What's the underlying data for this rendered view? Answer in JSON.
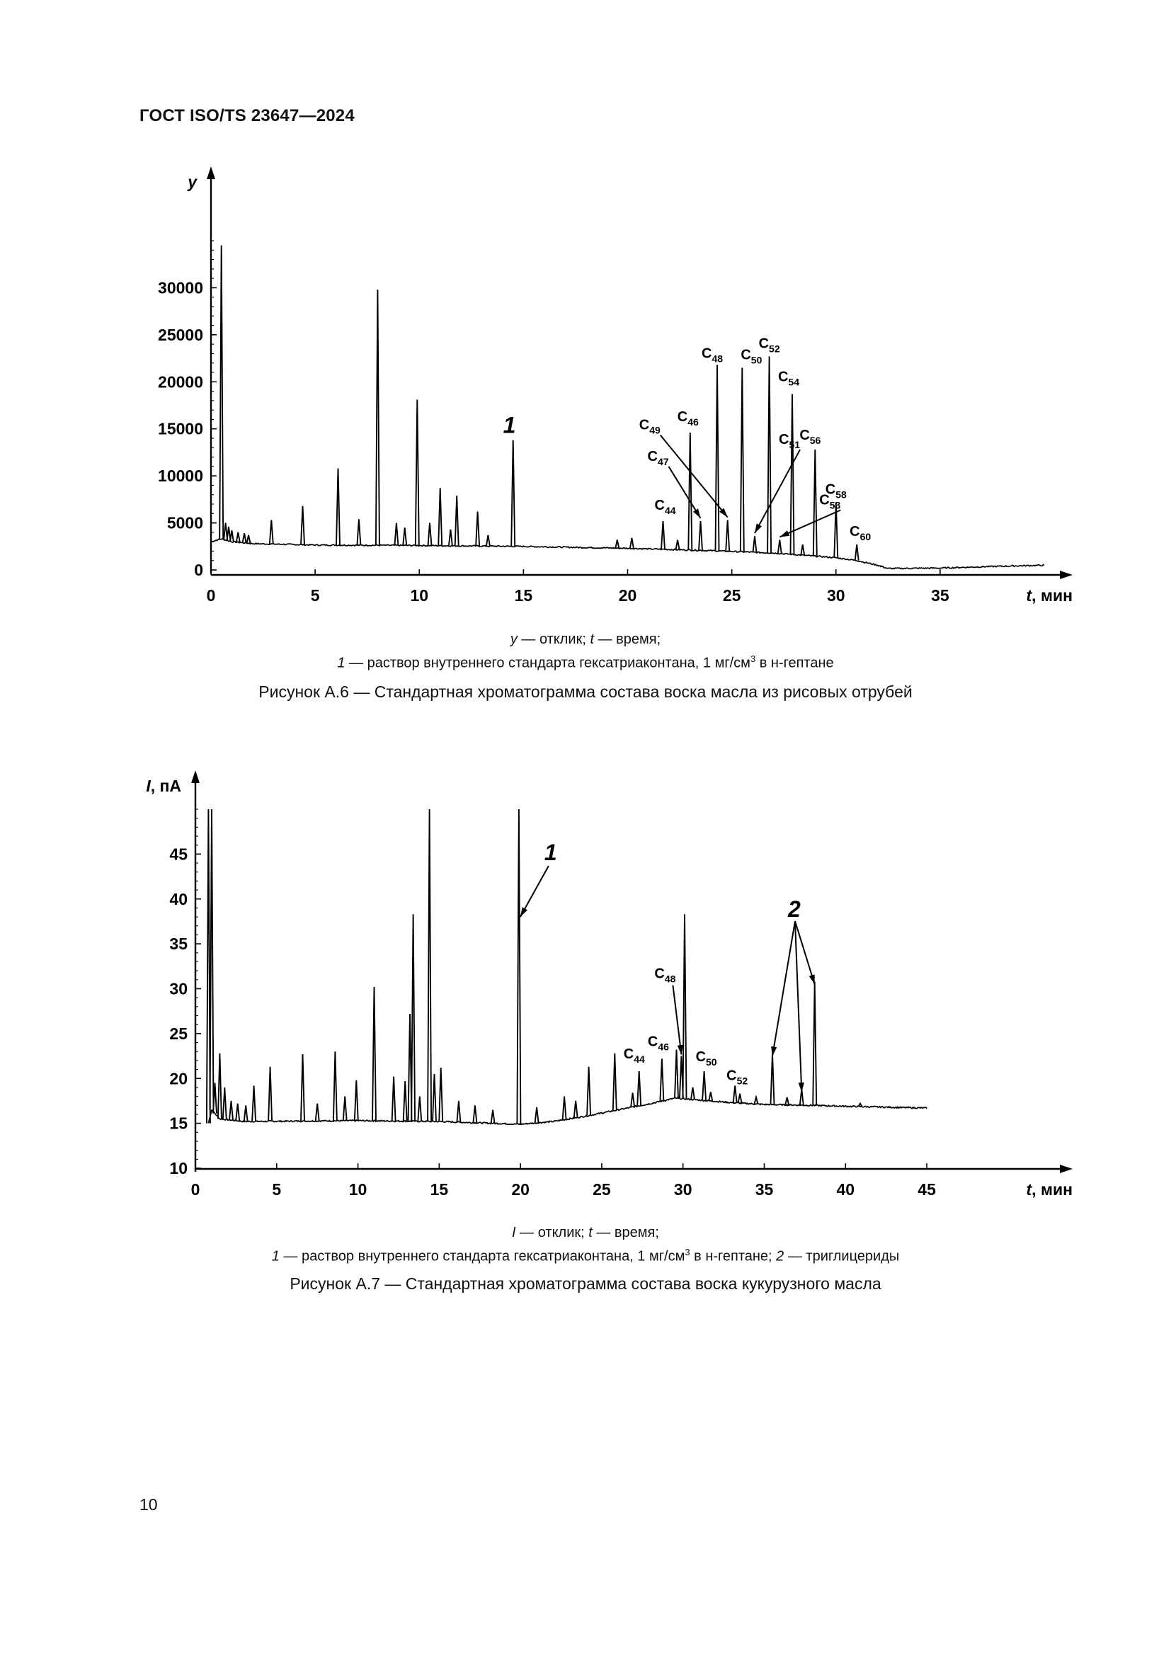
{
  "header": {
    "title": "ГОСТ ISO/TS 23647—2024"
  },
  "page_number": "10",
  "figures": [
    {
      "legend_line1": {
        "y_sym": "y",
        "y_text": " — отклик; ",
        "t_sym": "t",
        "t_text": " — время;"
      },
      "legend_line2": {
        "n1": "1",
        "text1": " — раствор внутреннего стандарта гексатриаконтана, 1 мг/см",
        "sup": "3",
        "text2": " в н-гептане"
      },
      "caption": "Рисунок А.6 — Стандартная хроматограмма состава воска масла из рисовых отрубей"
    },
    {
      "legend_line1": {
        "y_sym": "I",
        "y_text": " — отклик; ",
        "t_sym": "t",
        "t_text": " — время;"
      },
      "legend_line2": {
        "n1": "1",
        "text1": " — раствор внутреннего стандарта гексатриаконтана, 1 мг/см",
        "sup": "3",
        "text2": " в н-гептане; ",
        "n2": "2",
        "text3": " — триглицериды"
      },
      "caption": "Рисунок А.7 — Стандартная хроматограмма состава воска кукурузного масла"
    }
  ],
  "chart_data": [
    {
      "type": "line",
      "ylabel": "y",
      "xlabel": "t, мин",
      "xlim": [
        0,
        40
      ],
      "ylim": [
        0,
        35000
      ],
      "x_ticks": [
        0,
        5,
        10,
        15,
        20,
        25,
        30,
        35
      ],
      "y_ticks": [
        0,
        5000,
        10000,
        15000,
        20000,
        25000,
        30000
      ],
      "grid": false,
      "baseline": [
        [
          0,
          3000
        ],
        [
          0.5,
          3300
        ],
        [
          1,
          3000
        ],
        [
          2,
          2800
        ],
        [
          5,
          2650
        ],
        [
          10,
          2600
        ],
        [
          15,
          2500
        ],
        [
          20,
          2300
        ],
        [
          24,
          2050
        ],
        [
          27,
          1800
        ],
        [
          30,
          1300
        ],
        [
          31,
          1000
        ],
        [
          32,
          500
        ],
        [
          32.5,
          150
        ],
        [
          35,
          200
        ],
        [
          38,
          400
        ],
        [
          40,
          500
        ]
      ],
      "peaks": [
        {
          "t": 0.5,
          "y": 34500
        },
        {
          "t": 0.7,
          "y": 5000
        },
        {
          "t": 0.85,
          "y": 4600
        },
        {
          "t": 1.0,
          "y": 4200
        },
        {
          "t": 1.3,
          "y": 4000
        },
        {
          "t": 1.6,
          "y": 3900
        },
        {
          "t": 1.8,
          "y": 3700
        },
        {
          "t": 2.9,
          "y": 5300
        },
        {
          "t": 4.4,
          "y": 6800
        },
        {
          "t": 6.1,
          "y": 10800
        },
        {
          "t": 7.1,
          "y": 5400
        },
        {
          "t": 8.0,
          "y": 29800
        },
        {
          "t": 8.9,
          "y": 5000
        },
        {
          "t": 9.3,
          "y": 4500
        },
        {
          "t": 9.9,
          "y": 18100
        },
        {
          "t": 10.5,
          "y": 5000
        },
        {
          "t": 11.0,
          "y": 8700
        },
        {
          "t": 11.5,
          "y": 4300
        },
        {
          "t": 11.8,
          "y": 7900
        },
        {
          "t": 12.8,
          "y": 6200
        },
        {
          "t": 13.3,
          "y": 3700
        },
        {
          "t": 14.5,
          "y": 13800
        },
        {
          "t": 19.5,
          "y": 3200
        },
        {
          "t": 20.2,
          "y": 3400
        },
        {
          "t": 21.7,
          "y": 5200
        },
        {
          "t": 22.4,
          "y": 3200
        },
        {
          "t": 23.0,
          "y": 14600
        },
        {
          "t": 23.5,
          "y": 5200
        },
        {
          "t": 24.3,
          "y": 21800
        },
        {
          "t": 24.8,
          "y": 5300
        },
        {
          "t": 25.5,
          "y": 21500
        },
        {
          "t": 26.1,
          "y": 3600
        },
        {
          "t": 26.8,
          "y": 22700
        },
        {
          "t": 27.3,
          "y": 3200
        },
        {
          "t": 27.9,
          "y": 18700
        },
        {
          "t": 28.4,
          "y": 2700
        },
        {
          "t": 29.0,
          "y": 12800
        },
        {
          "t": 30.0,
          "y": 7200
        },
        {
          "t": 31.0,
          "y": 2700
        },
        {
          "t": 32.2,
          "y": 400
        }
      ],
      "labels": [
        {
          "text": "1",
          "t": 14.5,
          "y": 13800
        },
        {
          "text": "C44",
          "t": 21.7,
          "y": 5200
        },
        {
          "text": "C46",
          "t": 23.0,
          "y": 14600
        },
        {
          "text": "C47",
          "t": 23.5,
          "y": 5200
        },
        {
          "text": "C48",
          "t": 24.3,
          "y": 21800
        },
        {
          "text": "C49",
          "t": 24.8,
          "y": 5300
        },
        {
          "text": "C50",
          "t": 25.5,
          "y": 21500
        },
        {
          "text": "C51",
          "t": 26.1,
          "y": 3600
        },
        {
          "text": "C52",
          "t": 26.8,
          "y": 22700
        },
        {
          "text": "C53",
          "t": 27.3,
          "y": 3200
        },
        {
          "text": "C54",
          "t": 27.9,
          "y": 18700
        },
        {
          "text": "C56",
          "t": 29.0,
          "y": 12800
        },
        {
          "text": "C58",
          "t": 30.0,
          "y": 7200
        },
        {
          "text": "C60",
          "t": 31.0,
          "y": 2700
        }
      ]
    },
    {
      "type": "line",
      "ylabel": "I, пА",
      "xlabel": "t, мин",
      "xlim": [
        0,
        47
      ],
      "ylim": [
        10,
        50
      ],
      "x_ticks": [
        0,
        5,
        10,
        15,
        20,
        25,
        30,
        35,
        40,
        45
      ],
      "y_ticks": [
        10,
        15,
        20,
        25,
        30,
        35,
        40,
        45
      ],
      "grid": false,
      "baseline": [
        [
          0.8,
          15
        ],
        [
          1.0,
          16.5
        ],
        [
          1.5,
          15.5
        ],
        [
          3,
          15.2
        ],
        [
          10,
          15.3
        ],
        [
          15,
          15.2
        ],
        [
          20,
          14.9
        ],
        [
          22,
          15.2
        ],
        [
          24,
          15.8
        ],
        [
          26,
          16.5
        ],
        [
          28,
          17.2
        ],
        [
          29.5,
          17.8
        ],
        [
          31,
          17.6
        ],
        [
          33,
          17.3
        ],
        [
          35,
          17.1
        ],
        [
          38,
          17
        ],
        [
          40,
          16.9
        ],
        [
          45,
          16.7
        ]
      ],
      "peaks": [
        {
          "t": 0.8,
          "y": 50
        },
        {
          "t": 1.0,
          "y": 50
        },
        {
          "t": 1.2,
          "y": 19.5
        },
        {
          "t": 1.5,
          "y": 22.8
        },
        {
          "t": 1.8,
          "y": 19
        },
        {
          "t": 2.2,
          "y": 17.5
        },
        {
          "t": 2.6,
          "y": 17.2
        },
        {
          "t": 3.1,
          "y": 17
        },
        {
          "t": 3.6,
          "y": 19.2
        },
        {
          "t": 4.6,
          "y": 21.3
        },
        {
          "t": 6.6,
          "y": 22.7
        },
        {
          "t": 7.5,
          "y": 17.2
        },
        {
          "t": 8.6,
          "y": 23
        },
        {
          "t": 9.2,
          "y": 18
        },
        {
          "t": 9.9,
          "y": 19.8
        },
        {
          "t": 11.0,
          "y": 30.2
        },
        {
          "t": 12.2,
          "y": 20.2
        },
        {
          "t": 12.9,
          "y": 19.7
        },
        {
          "t": 13.2,
          "y": 27.2
        },
        {
          "t": 13.4,
          "y": 38.3
        },
        {
          "t": 13.8,
          "y": 18
        },
        {
          "t": 14.4,
          "y": 50
        },
        {
          "t": 14.7,
          "y": 20.5
        },
        {
          "t": 15.1,
          "y": 21.2
        },
        {
          "t": 16.2,
          "y": 17.5
        },
        {
          "t": 17.2,
          "y": 17
        },
        {
          "t": 18.3,
          "y": 16.5
        },
        {
          "t": 19.9,
          "y": 50
        },
        {
          "t": 21.0,
          "y": 16.8
        },
        {
          "t": 22.7,
          "y": 18
        },
        {
          "t": 23.4,
          "y": 17.5
        },
        {
          "t": 24.2,
          "y": 21.3
        },
        {
          "t": 25.8,
          "y": 22.8
        },
        {
          "t": 26.9,
          "y": 18.4
        },
        {
          "t": 27.3,
          "y": 20.8
        },
        {
          "t": 28.7,
          "y": 22.2
        },
        {
          "t": 29.6,
          "y": 23.2
        },
        {
          "t": 29.9,
          "y": 22.5
        },
        {
          "t": 30.1,
          "y": 38.3
        },
        {
          "t": 30.6,
          "y": 19
        },
        {
          "t": 31.3,
          "y": 20.8
        },
        {
          "t": 31.7,
          "y": 18.5
        },
        {
          "t": 33.2,
          "y": 19.2
        },
        {
          "t": 33.5,
          "y": 18.3
        },
        {
          "t": 34.5,
          "y": 17.9
        },
        {
          "t": 35.5,
          "y": 22.8
        },
        {
          "t": 36.4,
          "y": 17.9
        },
        {
          "t": 37.3,
          "y": 18.8
        },
        {
          "t": 38.1,
          "y": 30.8
        },
        {
          "t": 40.9,
          "y": 17.2
        }
      ],
      "labels": [
        {
          "text": "1",
          "t": 19.9,
          "y": 38
        },
        {
          "text": "2",
          "t": 35.5,
          "y": 22.8
        },
        {
          "text": "2",
          "t": 37.3,
          "y": 18.8
        },
        {
          "text": "2",
          "t": 38.1,
          "y": 30.8
        },
        {
          "text": "C44",
          "t": 27.3,
          "y": 20.8
        },
        {
          "text": "C46",
          "t": 28.7,
          "y": 22.2
        },
        {
          "text": "C48",
          "t": 29.9,
          "y": 22.5
        },
        {
          "text": "C50",
          "t": 31.3,
          "y": 20.8
        },
        {
          "text": "C52",
          "t": 33.2,
          "y": 19.2
        }
      ]
    }
  ]
}
